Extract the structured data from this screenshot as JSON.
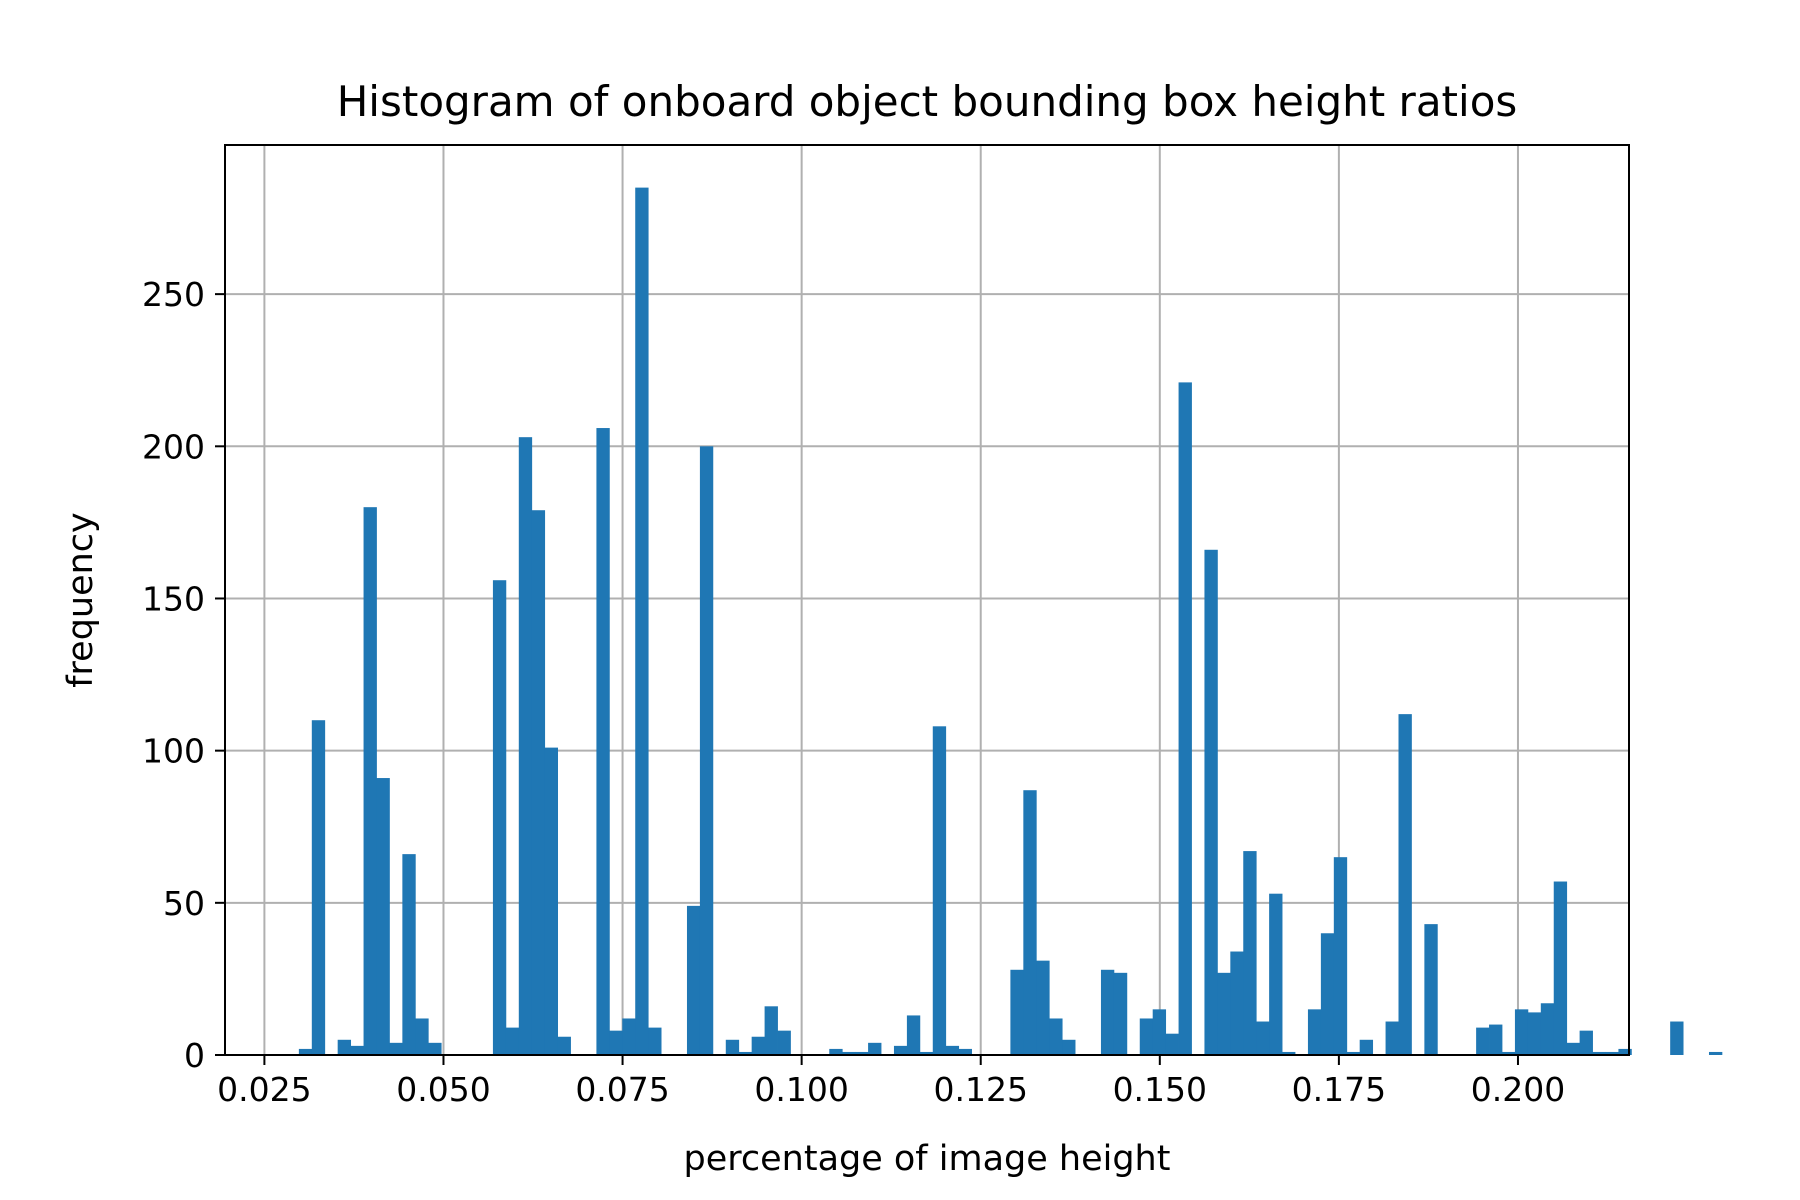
{
  "chart_data": {
    "type": "bar",
    "title": "Histogram of onboard object bounding box height ratios",
    "xlabel": "percentage of image height",
    "ylabel": "frequency",
    "xlim": [
      0.0195,
      0.2155
    ],
    "ylim": [
      0,
      299
    ],
    "xticks": [
      0.025,
      0.05,
      0.075,
      0.1,
      0.125,
      0.15,
      0.175,
      0.2
    ],
    "xtick_labels": [
      "0.025",
      "0.050",
      "0.075",
      "0.100",
      "0.125",
      "0.150",
      "0.175",
      "0.200"
    ],
    "yticks": [
      0,
      50,
      100,
      150,
      200,
      250
    ],
    "ytick_labels": [
      "0",
      "50",
      "100",
      "150",
      "200",
      "250"
    ],
    "grid": true,
    "bar_color": "#1f77b4",
    "bin_start": 0.0262,
    "bin_width": 0.001806,
    "values": [
      0,
      0,
      2,
      110,
      0,
      5,
      3,
      180,
      91,
      4,
      66,
      12,
      4,
      0,
      0,
      0,
      0,
      156,
      9,
      203,
      179,
      101,
      6,
      0,
      0,
      206,
      8,
      12,
      285,
      9,
      0,
      0,
      49,
      200,
      0,
      5,
      1,
      6,
      16,
      8,
      0,
      0,
      0,
      2,
      1,
      1,
      4,
      0,
      3,
      13,
      1,
      108,
      3,
      2,
      0,
      0,
      0,
      28,
      87,
      31,
      12,
      5,
      0,
      0,
      28,
      27,
      0,
      12,
      15,
      7,
      221,
      0,
      166,
      27,
      34,
      67,
      11,
      53,
      1,
      0,
      15,
      40,
      65,
      1,
      5,
      0,
      11,
      112,
      0,
      43,
      0,
      0,
      0,
      9,
      10,
      1,
      15,
      14,
      17,
      57,
      4,
      8,
      1,
      1,
      2,
      0,
      0,
      0,
      11,
      0,
      0,
      1,
      0
    ]
  }
}
